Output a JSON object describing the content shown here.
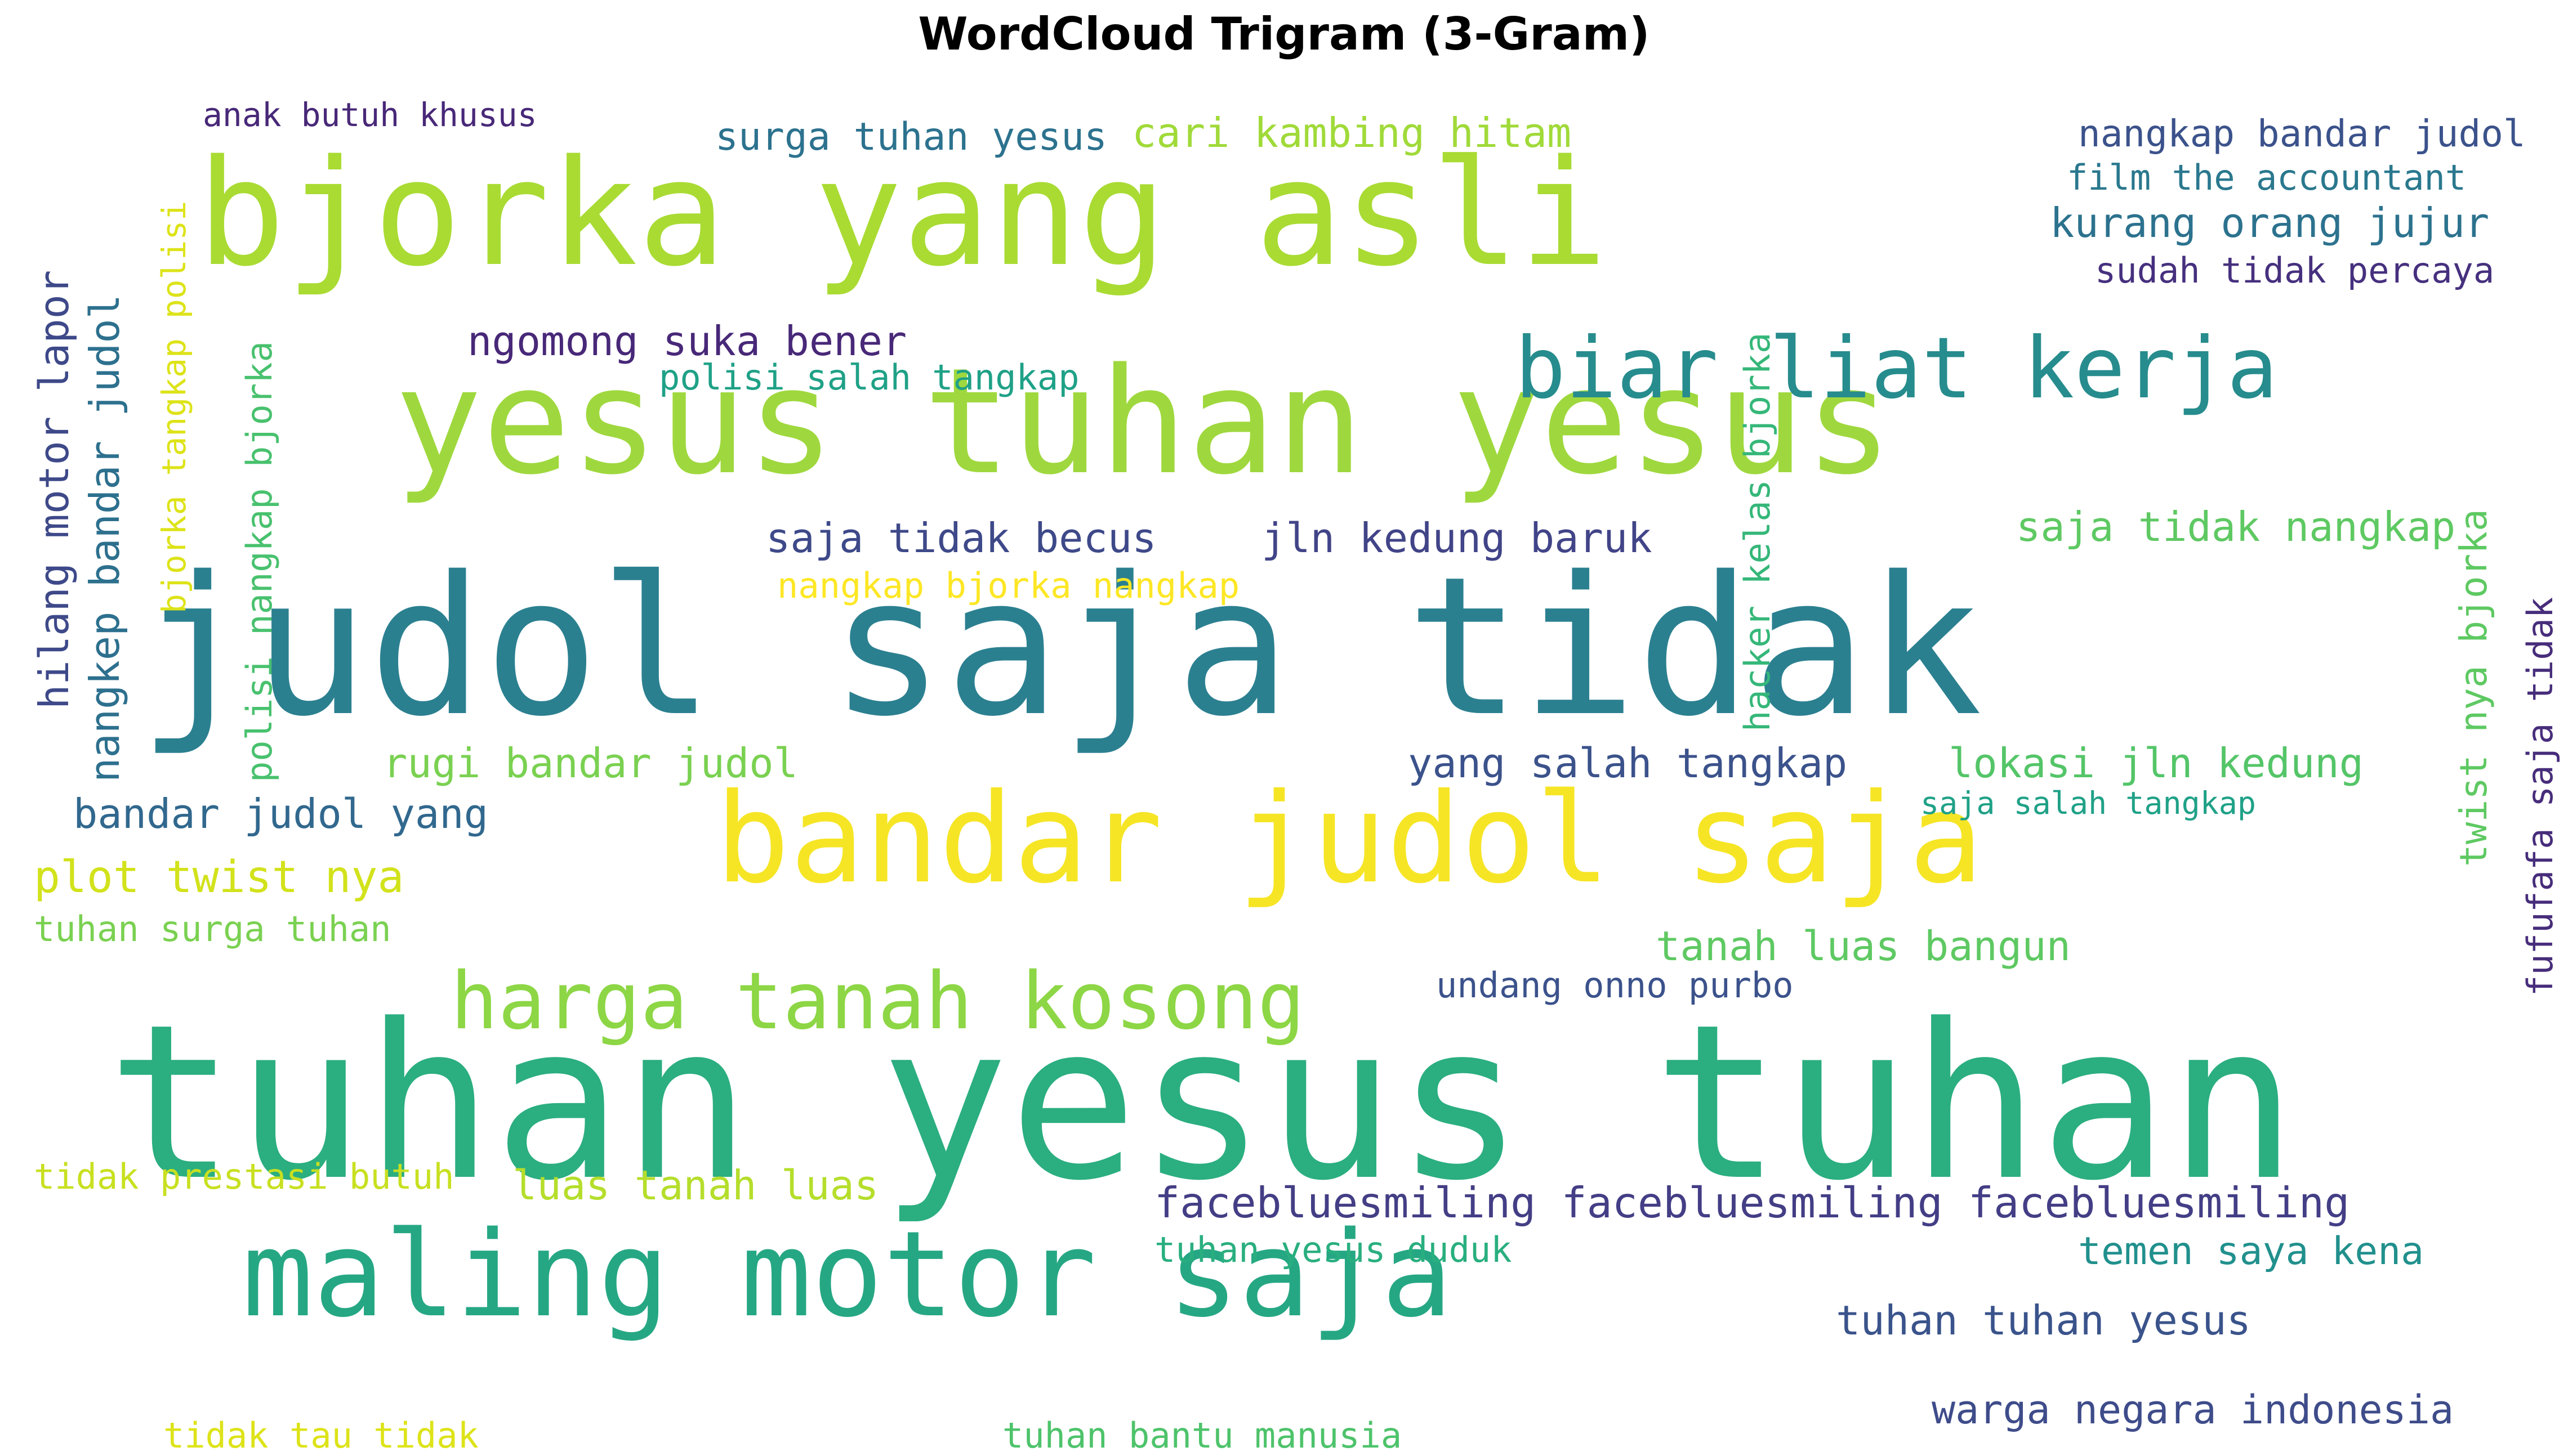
{
  "title": "WordCloud Trigram (3-Gram)",
  "words": [
    {
      "text": "tuhan yesus tuhan",
      "color": "#2bae80",
      "vertical": false
    },
    {
      "text": "judol saja tidak",
      "color": "#2b8090",
      "vertical": false
    },
    {
      "text": "yesus tuhan yesus",
      "color": "#9fd83e",
      "vertical": false
    },
    {
      "text": "bjorka yang asli",
      "color": "#a9db33",
      "vertical": false
    },
    {
      "text": "bandar judol saja",
      "color": "#f6e525",
      "vertical": false
    },
    {
      "text": "maling motor saja",
      "color": "#26a784",
      "vertical": false
    },
    {
      "text": "biar liat kerja",
      "color": "#278c8d",
      "vertical": false
    },
    {
      "text": "harga tanah kosong",
      "color": "#8dd645",
      "vertical": false
    },
    {
      "text": "facebluesmiling facebluesmiling facebluesmiling",
      "color": "#433e85",
      "vertical": false
    },
    {
      "text": "tuhan tuhan yesus",
      "color": "#3a538b",
      "vertical": false
    },
    {
      "text": "warga negara indonesia",
      "color": "#3e4c8a",
      "vertical": false
    },
    {
      "text": "temen saya kena",
      "color": "#21908d",
      "vertical": false
    },
    {
      "text": "tuhan bantu manusia",
      "color": "#4ec36b",
      "vertical": false
    },
    {
      "text": "tidak tau tidak",
      "color": "#dde318",
      "vertical": false
    },
    {
      "text": "tidak prestasi butuh",
      "color": "#c8e020",
      "vertical": false
    },
    {
      "text": "luas tanah luas",
      "color": "#b5de2b",
      "vertical": false
    },
    {
      "text": "tuhan yesus duduk",
      "color": "#29af7f",
      "vertical": false
    },
    {
      "text": "undang onno purbo",
      "color": "#3b528b",
      "vertical": false
    },
    {
      "text": "tanah luas bangun",
      "color": "#5ec962",
      "vertical": false
    },
    {
      "text": "tuhan surga tuhan",
      "color": "#7ad151",
      "vertical": false
    },
    {
      "text": "plot twist nya",
      "color": "#d2e21b",
      "vertical": false
    },
    {
      "text": "bandar judol yang",
      "color": "#31688e",
      "vertical": false
    },
    {
      "text": "rugi bandar judol",
      "color": "#7ad151",
      "vertical": false
    },
    {
      "text": "yang salah tangkap",
      "color": "#3b528b",
      "vertical": false
    },
    {
      "text": "lokasi jln kedung",
      "color": "#54c568",
      "vertical": false
    },
    {
      "text": "saja salah tangkap",
      "color": "#1fa187",
      "vertical": false
    },
    {
      "text": "saja tidak becus",
      "color": "#3e4989",
      "vertical": false
    },
    {
      "text": "jln kedung baruk",
      "color": "#414487",
      "vertical": false
    },
    {
      "text": "nangkap bjorka nangkap",
      "color": "#fde725",
      "vertical": false
    },
    {
      "text": "saja tidak nangkap",
      "color": "#5ec962",
      "vertical": false
    },
    {
      "text": "ngomong suka bener",
      "color": "#482878",
      "vertical": false
    },
    {
      "text": "polisi salah tangkap",
      "color": "#1fa187",
      "vertical": false
    },
    {
      "text": "surga tuhan yesus",
      "color": "#2c728e",
      "vertical": false
    },
    {
      "text": "cari kambing hitam",
      "color": "#a0da39",
      "vertical": false
    },
    {
      "text": "anak butuh khusus",
      "color": "#482878",
      "vertical": false
    },
    {
      "text": "nangkap bandar judol",
      "color": "#3b528b",
      "vertical": false
    },
    {
      "text": "film the accountant",
      "color": "#2a788e",
      "vertical": false
    },
    {
      "text": "kurang orang jujur",
      "color": "#2c728e",
      "vertical": false
    },
    {
      "text": "sudah tidak percaya",
      "color": "#46307e",
      "vertical": false
    },
    {
      "text": "hilang motor lapor",
      "color": "#3e4989",
      "vertical": true
    },
    {
      "text": "nangkep bandar judol",
      "color": "#2d708e",
      "vertical": true
    },
    {
      "text": "bjorka tangkap polisi",
      "color": "#dde318",
      "vertical": true
    },
    {
      "text": "polisi nangkap bjorka",
      "color": "#48c16e",
      "vertical": true
    },
    {
      "text": "hacker kelas bjorka",
      "color": "#35b779",
      "vertical": true
    },
    {
      "text": "twist nya bjorka",
      "color": "#5ec962",
      "vertical": true
    },
    {
      "text": "fufufafa saja tidak",
      "color": "#472d7b",
      "vertical": true
    }
  ]
}
